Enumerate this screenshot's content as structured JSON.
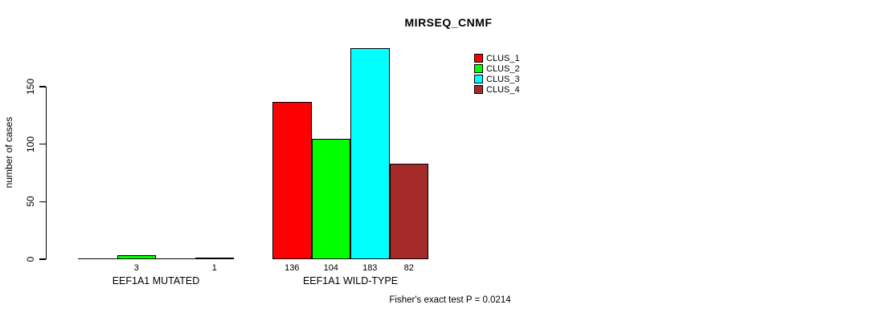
{
  "chart_data": {
    "type": "bar",
    "title": "MIRSEQ_CNMF",
    "ylabel": "number of cases",
    "xlabel": "",
    "yticks": [
      0,
      50,
      100,
      150
    ],
    "ylim": [
      0,
      185
    ],
    "grid": false,
    "legend_position": "top-right",
    "categories": [
      "EEF1A1 MUTATED",
      "EEF1A1 WILD-TYPE"
    ],
    "series": [
      {
        "name": "CLUS_1",
        "color": "#ff0000",
        "values": [
          0,
          136
        ]
      },
      {
        "name": "CLUS_2",
        "color": "#00ff00",
        "values": [
          3,
          104
        ]
      },
      {
        "name": "CLUS_3",
        "color": "#00ffff",
        "values": [
          0,
          183
        ]
      },
      {
        "name": "CLUS_4",
        "color": "#a52a2a",
        "values": [
          1,
          82
        ]
      }
    ],
    "bar_value_labels": [
      [
        "",
        "3",
        "",
        "1"
      ],
      [
        "136",
        "104",
        "183",
        "82"
      ]
    ],
    "annotation": "Fisher's exact test P = 0.0214",
    "axis_color": "#000000",
    "background": "#ffffff"
  }
}
